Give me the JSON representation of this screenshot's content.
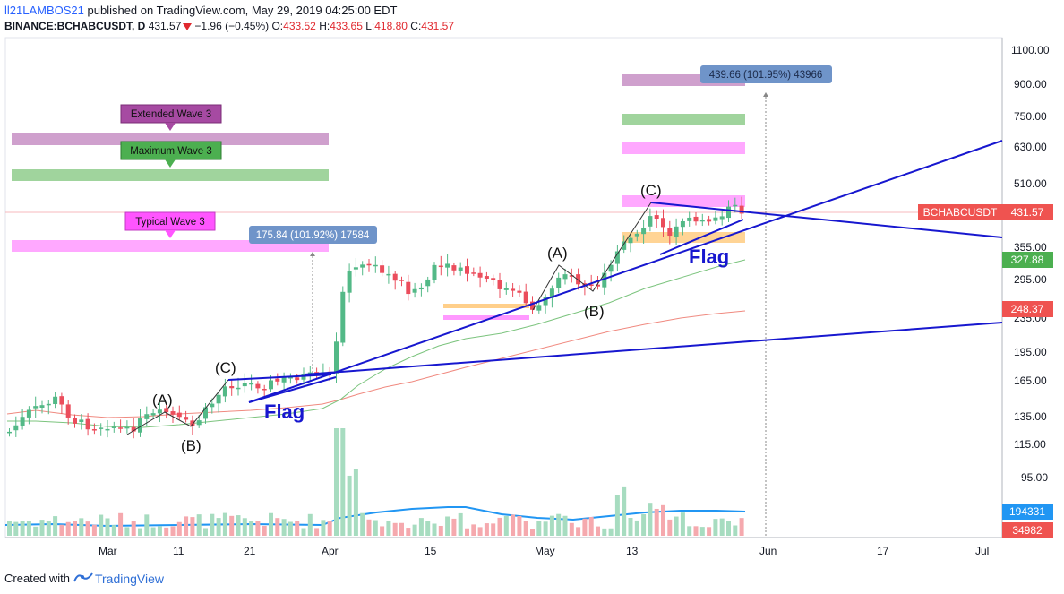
{
  "header": {
    "user": "ll21LAMBOS21",
    "published_text": " published on TradingView.com, May 29, 2019 04:25:00 EDT",
    "symbol": "BINANCE:BCHABCUSDT, D",
    "last": "431.57",
    "change": "−1.96 (−0.45%)",
    "o_label": "O:",
    "o": "433.52",
    "h_label": "H:",
    "h": "433.65",
    "l_label": "L:",
    "l": "418.80",
    "c_label": "C:",
    "c": "431.57"
  },
  "price_axis": {
    "ticks": [
      "1100.00",
      "900.00",
      "750.00",
      "630.00",
      "510.00",
      "355.00",
      "295.00",
      "235.00",
      "195.00",
      "165.00",
      "135.00",
      "115.00",
      "95.00"
    ],
    "symbol_tag": "BCHABCUSDT",
    "symbol_tag_value": "431.57",
    "ma_fast_tag": "327.88",
    "ma_slow_tag": "248.37",
    "volume_ma_tag": "194331",
    "volume_tag": "34982"
  },
  "time_axis": {
    "labels": [
      "Mar",
      "11",
      "21",
      "Apr",
      "15",
      "May",
      "13",
      "Jun",
      "17",
      "Jul"
    ]
  },
  "annotations": {
    "extended_wave": "Extended Wave 3",
    "maximum_wave": "Maximum Wave 3",
    "typical_wave": "Typical Wave 3",
    "measure_left": "175.84 (101.92%) 17584",
    "measure_right": "439.66 (101.95%) 43966",
    "flag_left": "Flag",
    "flag_right": "Flag",
    "wave_a_left": "(A)",
    "wave_b_left": "(B)",
    "wave_c_left": "(C)",
    "wave_a_right": "(A)",
    "wave_b_right": "(B)",
    "wave_c_right": "(C)"
  },
  "footer": {
    "created_with": "Created with",
    "brand": "TradingView"
  },
  "colors": {
    "up": "#53b987",
    "down": "#eb4d5c",
    "trendline": "#1717cf",
    "ma_fast": "#7cc47e",
    "ma_slow": "#f08a80",
    "volume_ma": "#2196f3",
    "extended_band": "#c78fc4",
    "maximum_band": "#8fcc8c",
    "typical_band": "#ff99ff",
    "orange_band": "#ffcf8a",
    "price_tag": "#ef5350",
    "ma_fast_tag": "#4caf50"
  }
}
